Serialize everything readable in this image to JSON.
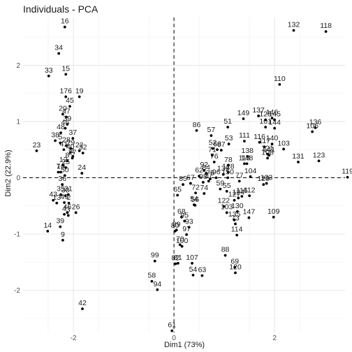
{
  "chart_data": {
    "type": "scatter",
    "title": "Individuals - PCA",
    "xlabel": "Dim1 (73%)",
    "ylabel": "Dim2 (22.9%)",
    "xlim": [
      -3.0,
      3.4
    ],
    "ylim": [
      -2.75,
      2.85
    ],
    "x_ticks": [
      -2,
      0,
      2
    ],
    "y_ticks": [
      -2,
      -1,
      0,
      1,
      2
    ],
    "grid": true,
    "reference_lines": {
      "x": 0,
      "y": 0,
      "style": "dashed"
    },
    "point_color": "#000000",
    "points": [
      {
        "label": "16",
        "x": -2.17,
        "y": 2.68
      },
      {
        "label": "34",
        "x": -2.29,
        "y": 2.21
      },
      {
        "label": "33",
        "x": -2.49,
        "y": 1.81
      },
      {
        "label": "15",
        "x": -2.15,
        "y": 1.84
      },
      {
        "label": "176",
        "x": -2.15,
        "y": 1.44
      },
      {
        "label": "19",
        "x": -1.88,
        "y": 1.44
      },
      {
        "label": "45",
        "x": -2.07,
        "y": 1.27
      },
      {
        "label": "20",
        "x": -2.21,
        "y": 1.13
      },
      {
        "label": "47",
        "x": -2.14,
        "y": 1.08
      },
      {
        "label": "39",
        "x": -2.12,
        "y": 0.95
      },
      {
        "label": "46",
        "x": -2.16,
        "y": 0.88
      },
      {
        "label": "48",
        "x": -2.25,
        "y": 0.8
      },
      {
        "label": "37",
        "x": -2.01,
        "y": 0.7
      },
      {
        "label": "38",
        "x": -2.36,
        "y": 0.66
      },
      {
        "label": "5",
        "x": -2.26,
        "y": 0.62
      },
      {
        "label": "28",
        "x": -2.14,
        "y": 0.57
      },
      {
        "label": "29",
        "x": -2.05,
        "y": 0.52
      },
      {
        "label": "41",
        "x": -2.19,
        "y": 0.5
      },
      {
        "label": "40",
        "x": -2.06,
        "y": 0.45
      },
      {
        "label": "22",
        "x": -1.88,
        "y": 0.48
      },
      {
        "label": "32",
        "x": -1.81,
        "y": 0.44
      },
      {
        "label": "1",
        "x": -2.01,
        "y": 0.38
      },
      {
        "label": "27",
        "x": -2.02,
        "y": 0.35
      },
      {
        "label": "23",
        "x": -2.73,
        "y": 0.48
      },
      {
        "label": "8",
        "x": -2.12,
        "y": 0.3
      },
      {
        "label": "12",
        "x": -2.2,
        "y": 0.22
      },
      {
        "label": "25",
        "x": -2.15,
        "y": 0.18
      },
      {
        "label": "7",
        "x": -2.3,
        "y": 0.1
      },
      {
        "label": "10",
        "x": -2.25,
        "y": 0.1
      },
      {
        "label": "50",
        "x": -2.17,
        "y": 0.04
      },
      {
        "label": "24",
        "x": -1.83,
        "y": 0.08
      },
      {
        "label": "36",
        "x": -2.22,
        "y": -0.12
      },
      {
        "label": "35",
        "x": -2.25,
        "y": -0.3
      },
      {
        "label": "30",
        "x": -2.16,
        "y": -0.32
      },
      {
        "label": "31",
        "x": -2.1,
        "y": -0.3
      },
      {
        "label": "43",
        "x": -2.4,
        "y": -0.4
      },
      {
        "label": "13",
        "x": -2.33,
        "y": -0.45
      },
      {
        "label": "49",
        "x": -2.18,
        "y": -0.44
      },
      {
        "label": "2",
        "x": -2.09,
        "y": -0.45
      },
      {
        "label": "4",
        "x": -2.18,
        "y": -0.65
      },
      {
        "label": "46b",
        "x": -2.12,
        "y": -0.62
      },
      {
        "label": "3",
        "x": -2.1,
        "y": -0.67
      },
      {
        "label": "26",
        "x": -1.95,
        "y": -0.62
      },
      {
        "label": "39b",
        "x": -2.26,
        "y": -0.87
      },
      {
        "label": "14",
        "x": -2.51,
        "y": -0.95
      },
      {
        "label": "9",
        "x": -2.21,
        "y": -1.11
      },
      {
        "label": "42",
        "x": -1.82,
        "y": -2.33
      },
      {
        "label": "132",
        "x": 2.38,
        "y": 2.62
      },
      {
        "label": "118",
        "x": 3.02,
        "y": 2.6
      },
      {
        "label": "110",
        "x": 2.1,
        "y": 1.66
      },
      {
        "label": "137",
        "x": 1.68,
        "y": 1.1
      },
      {
        "label": "149",
        "x": 1.38,
        "y": 1.05
      },
      {
        "label": "125",
        "x": 1.82,
        "y": 1.03
      },
      {
        "label": "146",
        "x": 1.95,
        "y": 1.06
      },
      {
        "label": "145",
        "x": 2.0,
        "y": 1.03
      },
      {
        "label": "136",
        "x": 2.81,
        "y": 0.89
      },
      {
        "label": "106",
        "x": 2.75,
        "y": 0.82
      },
      {
        "label": "51",
        "x": 1.07,
        "y": 0.9
      },
      {
        "label": "86",
        "x": 0.45,
        "y": 0.84
      },
      {
        "label": "57",
        "x": 0.74,
        "y": 0.75
      },
      {
        "label": "101",
        "x": 1.82,
        "y": 0.9
      },
      {
        "label": "144",
        "x": 2.0,
        "y": 0.88
      },
      {
        "label": "111",
        "x": 1.4,
        "y": 0.65
      },
      {
        "label": "116",
        "x": 1.7,
        "y": 0.63
      },
      {
        "label": "140",
        "x": 1.95,
        "y": 0.6
      },
      {
        "label": "103",
        "x": 2.18,
        "y": 0.51
      },
      {
        "label": "53",
        "x": 1.09,
        "y": 0.6
      },
      {
        "label": "66",
        "x": 0.86,
        "y": 0.5
      },
      {
        "label": "87",
        "x": 0.94,
        "y": 0.49
      },
      {
        "label": "52",
        "x": 0.77,
        "y": 0.52
      },
      {
        "label": "71",
        "x": 0.76,
        "y": 0.4
      },
      {
        "label": "138",
        "x": 1.46,
        "y": 0.38
      },
      {
        "label": "141",
        "x": 1.89,
        "y": 0.4
      },
      {
        "label": "108",
        "x": 1.86,
        "y": 0.35
      },
      {
        "label": "121",
        "x": 1.86,
        "y": 0.42
      },
      {
        "label": "117",
        "x": 1.8,
        "y": 0.55
      },
      {
        "label": "123",
        "x": 2.88,
        "y": 0.3
      },
      {
        "label": "131",
        "x": 2.47,
        "y": 0.28
      },
      {
        "label": "76",
        "x": 0.8,
        "y": 0.28
      },
      {
        "label": "148",
        "x": 1.45,
        "y": 0.25
      },
      {
        "label": "113",
        "x": 1.4,
        "y": 0.25
      },
      {
        "label": "78",
        "x": 1.08,
        "y": 0.22
      },
      {
        "label": "84",
        "x": 0.64,
        "y": 0.08
      },
      {
        "label": "92",
        "x": 0.6,
        "y": 0.13
      },
      {
        "label": "128",
        "x": 1.08,
        "y": 0.1
      },
      {
        "label": "139",
        "x": 0.98,
        "y": 0.06
      },
      {
        "label": "96",
        "x": 0.84,
        "y": 0.0
      },
      {
        "label": "150",
        "x": 1.07,
        "y": 0.0
      },
      {
        "label": "119",
        "x": 3.45,
        "y": 0.01
      },
      {
        "label": "104",
        "x": 1.52,
        "y": 0.02
      },
      {
        "label": "77",
        "x": 1.3,
        "y": -0.06
      },
      {
        "label": "62",
        "x": 0.5,
        "y": 0.03
      },
      {
        "label": "75",
        "x": 0.72,
        "y": -0.02
      },
      {
        "label": "98",
        "x": 0.58,
        "y": -0.08
      },
      {
        "label": "57b",
        "x": 0.69,
        "y": -0.06
      },
      {
        "label": "67",
        "x": 0.33,
        "y": -0.1
      },
      {
        "label": "85",
        "x": 0.18,
        "y": -0.12
      },
      {
        "label": "129",
        "x": 1.78,
        "y": -0.12
      },
      {
        "label": "133",
        "x": 1.84,
        "y": -0.1
      },
      {
        "label": "55",
        "x": 1.05,
        "y": -0.24
      },
      {
        "label": "59",
        "x": 0.92,
        "y": -0.2
      },
      {
        "label": "72",
        "x": 0.43,
        "y": -0.27
      },
      {
        "label": "74",
        "x": 0.6,
        "y": -0.28
      },
      {
        "label": "65",
        "x": 0.07,
        "y": -0.31
      },
      {
        "label": "112",
        "x": 1.5,
        "y": -0.32
      },
      {
        "label": "116b",
        "x": 1.35,
        "y": -0.33
      },
      {
        "label": "124",
        "x": 1.28,
        "y": -0.36
      },
      {
        "label": "127",
        "x": 1.2,
        "y": -0.4
      },
      {
        "label": "54",
        "x": 0.4,
        "y": -0.48
      },
      {
        "label": "56",
        "x": 0.42,
        "y": -0.49
      },
      {
        "label": "122",
        "x": 0.99,
        "y": -0.51
      },
      {
        "label": "103b",
        "x": 1.05,
        "y": -0.62
      },
      {
        "label": "130",
        "x": 1.26,
        "y": -0.6
      },
      {
        "label": "109",
        "x": 1.98,
        "y": -0.7
      },
      {
        "label": "147",
        "x": 1.49,
        "y": -0.71
      },
      {
        "label": "135",
        "x": 1.2,
        "y": -0.75
      },
      {
        "label": "68",
        "x": 0.15,
        "y": -0.7
      },
      {
        "label": "73",
        "x": 1.22,
        "y": -0.82
      },
      {
        "label": "95",
        "x": 0.21,
        "y": -0.77
      },
      {
        "label": "93",
        "x": 0.3,
        "y": -0.88
      },
      {
        "label": "80",
        "x": 0.02,
        "y": -0.95
      },
      {
        "label": "89",
        "x": 0.05,
        "y": -0.93
      },
      {
        "label": "97",
        "x": 0.25,
        "y": -1.01
      },
      {
        "label": "114",
        "x": 1.25,
        "y": -1.02
      },
      {
        "label": "70",
        "x": 0.12,
        "y": -1.19
      },
      {
        "label": "100",
        "x": 0.16,
        "y": -1.22
      },
      {
        "label": "88",
        "x": 1.02,
        "y": -1.38
      },
      {
        "label": "99",
        "x": -0.38,
        "y": -1.48
      },
      {
        "label": "82",
        "x": 0.03,
        "y": -1.53
      },
      {
        "label": "81",
        "x": 0.08,
        "y": -1.52
      },
      {
        "label": "107",
        "x": 0.36,
        "y": -1.52
      },
      {
        "label": "69",
        "x": 1.21,
        "y": -1.59
      },
      {
        "label": "54b",
        "x": 0.38,
        "y": -1.73
      },
      {
        "label": "63",
        "x": 0.56,
        "y": -1.74
      },
      {
        "label": "120",
        "x": 1.22,
        "y": -1.69
      },
      {
        "label": "58",
        "x": -0.44,
        "y": -1.84
      },
      {
        "label": "94",
        "x": -0.33,
        "y": -1.99
      },
      {
        "label": "61",
        "x": -0.04,
        "y": -2.72
      }
    ]
  }
}
